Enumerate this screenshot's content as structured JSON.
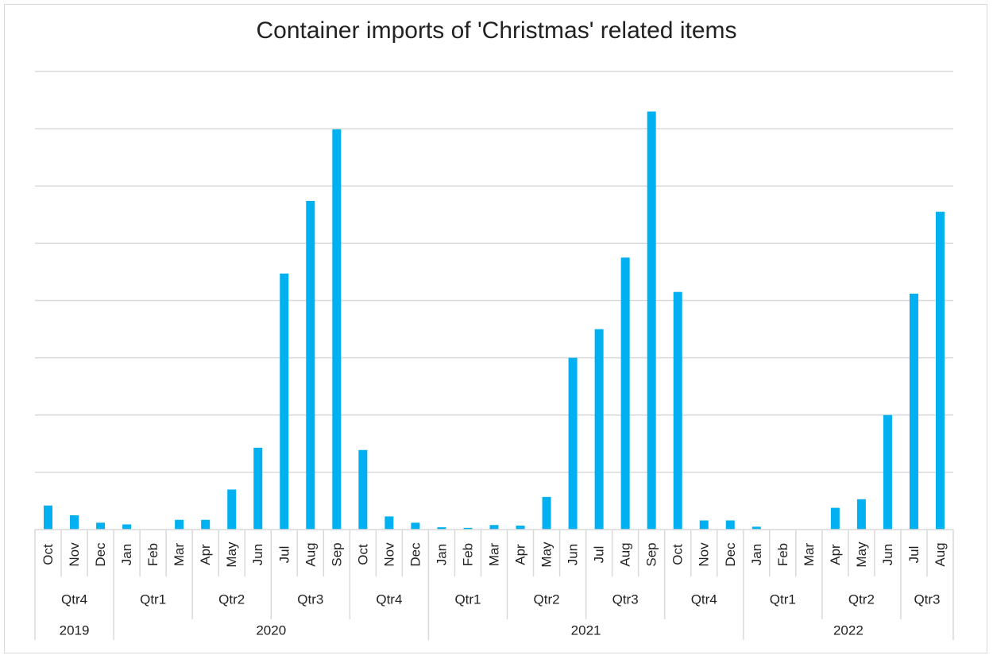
{
  "chart_data": {
    "type": "bar",
    "title": "Container imports of 'Christmas' related items",
    "xlabel": "",
    "ylabel": "",
    "y_tick_labels_visible": false,
    "ylim": [
      0,
      8
    ],
    "grid": true,
    "bar_color": "#00B0F0",
    "gridline_color": "#d9d9d9",
    "categories": [
      "Oct",
      "Nov",
      "Dec",
      "Jan",
      "Feb",
      "Mar",
      "Apr",
      "May",
      "Jun",
      "Jul",
      "Aug",
      "Sep",
      "Oct",
      "Nov",
      "Dec",
      "Jan",
      "Feb",
      "Mar",
      "Apr",
      "May",
      "Jun",
      "Jul",
      "Aug",
      "Sep",
      "Oct",
      "Nov",
      "Dec",
      "Jan",
      "Feb",
      "Mar",
      "Apr",
      "May",
      "Jun",
      "Jul",
      "Aug"
    ],
    "values": [
      0.42,
      0.25,
      0.12,
      0.09,
      0.0,
      0.17,
      0.17,
      0.7,
      1.43,
      4.47,
      5.74,
      6.99,
      1.39,
      0.23,
      0.12,
      0.04,
      0.03,
      0.08,
      0.07,
      0.57,
      3.0,
      3.5,
      4.75,
      7.3,
      4.15,
      0.16,
      0.16,
      0.05,
      0.0,
      0.0,
      0.38,
      0.53,
      2.0,
      4.12,
      5.55
    ],
    "quarters": [
      {
        "label": "Qtr4",
        "count": 3
      },
      {
        "label": "Qtr1",
        "count": 3
      },
      {
        "label": "Qtr2",
        "count": 3
      },
      {
        "label": "Qtr3",
        "count": 3
      },
      {
        "label": "Qtr4",
        "count": 3
      },
      {
        "label": "Qtr1",
        "count": 3
      },
      {
        "label": "Qtr2",
        "count": 3
      },
      {
        "label": "Qtr3",
        "count": 3
      },
      {
        "label": "Qtr4",
        "count": 3
      },
      {
        "label": "Qtr1",
        "count": 3
      },
      {
        "label": "Qtr2",
        "count": 3
      },
      {
        "label": "Qtr3",
        "count": 2
      }
    ],
    "years": [
      {
        "label": "2019",
        "count": 3
      },
      {
        "label": "2020",
        "count": 12
      },
      {
        "label": "2021",
        "count": 12
      },
      {
        "label": "2022",
        "count": 8
      }
    ]
  }
}
